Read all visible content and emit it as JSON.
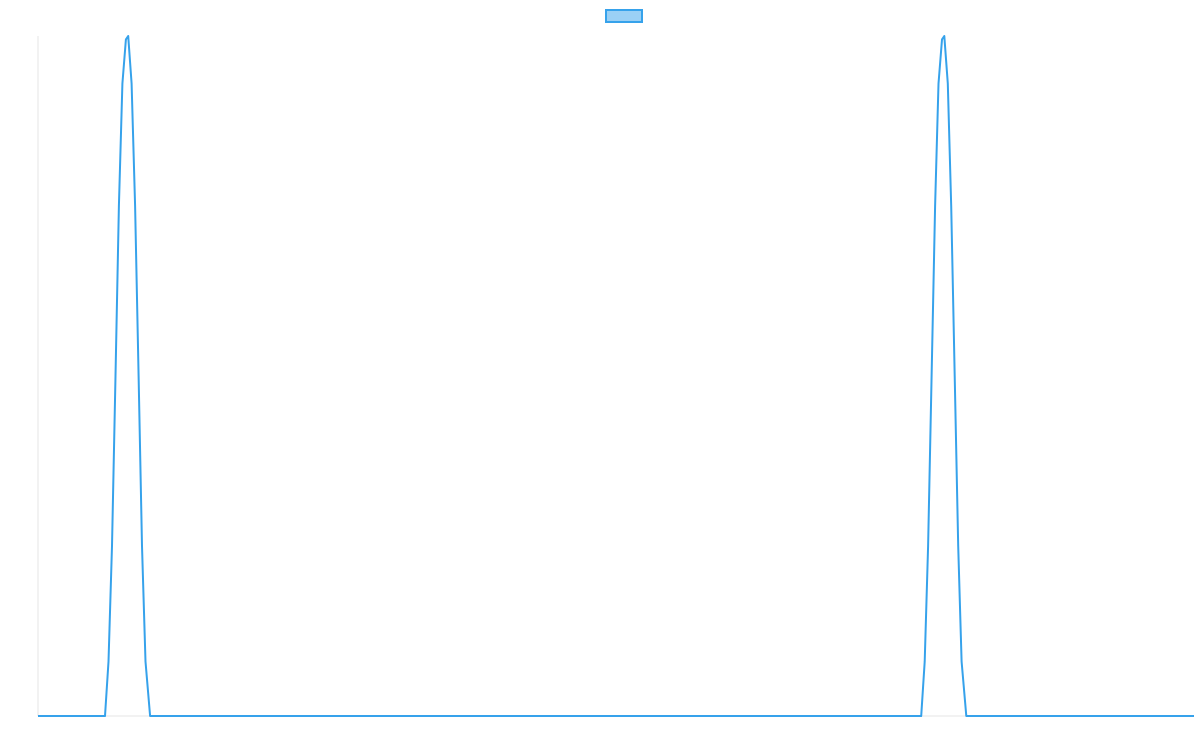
{
  "chart_data": {
    "type": "line",
    "title": "",
    "xlabel": "",
    "ylabel": "",
    "legend": {
      "position": "top",
      "entries": [
        {
          "name": "",
          "color": "#36a2eb"
        }
      ]
    },
    "grid": false,
    "xlim": [
      0,
      1
    ],
    "ylim": [
      0,
      1
    ],
    "series": [
      {
        "name": "",
        "color": "#36a2eb",
        "x": [
          0,
          0.058,
          0.061,
          0.064,
          0.067,
          0.07,
          0.073,
          0.076,
          0.078,
          0.081,
          0.084,
          0.087,
          0.09,
          0.093,
          0.097,
          0.764,
          0.767,
          0.77,
          0.773,
          0.776,
          0.779,
          0.782,
          0.784,
          0.787,
          0.79,
          0.793,
          0.796,
          0.799,
          0.803,
          1
        ],
        "y": [
          0,
          0,
          0.08,
          0.25,
          0.5,
          0.75,
          0.93,
          0.995,
          1.0,
          0.93,
          0.75,
          0.5,
          0.25,
          0.08,
          0,
          0,
          0.08,
          0.25,
          0.5,
          0.75,
          0.93,
          0.995,
          1.0,
          0.93,
          0.75,
          0.5,
          0.25,
          0.08,
          0,
          0
        ]
      }
    ]
  }
}
